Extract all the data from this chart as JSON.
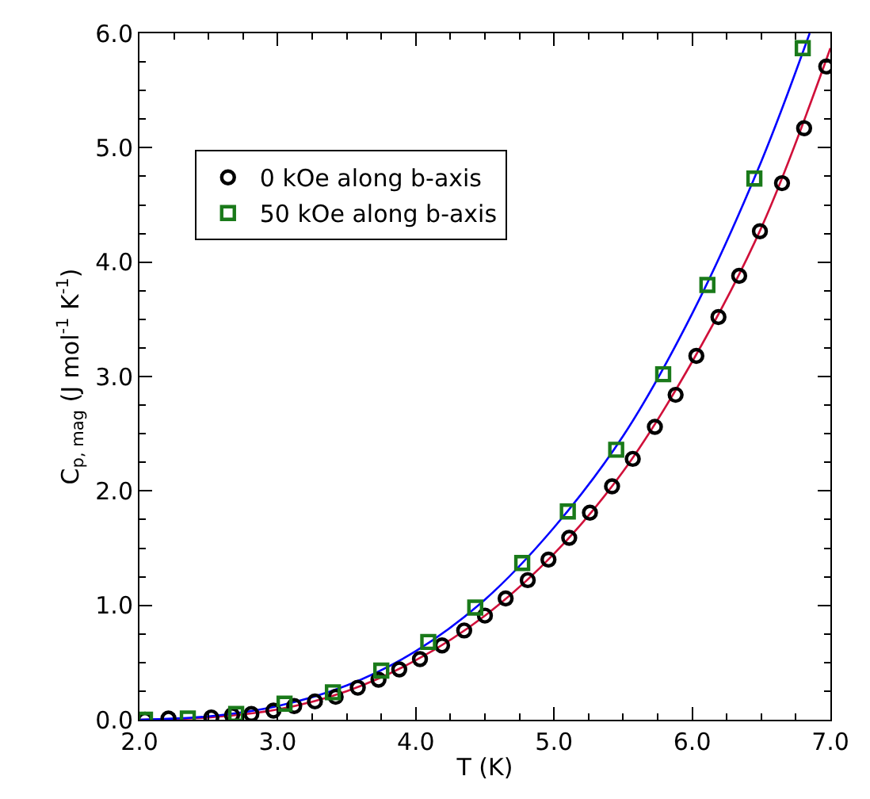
{
  "chart_data": {
    "type": "scatter",
    "xlabel": "T (K)",
    "ylabel": "C$_{p, mag}$ (J mol$^{-1}$ K$^{-1}$)",
    "xlim": [
      2.0,
      7.0
    ],
    "ylim": [
      0.0,
      6.0
    ],
    "xticks": [
      {
        "value": 2,
        "label": "2.0"
      },
      {
        "value": 3,
        "label": "3.0"
      },
      {
        "value": 4,
        "label": "4.0"
      },
      {
        "value": 5,
        "label": "5.0"
      },
      {
        "value": 6,
        "label": "6.0"
      },
      {
        "value": 7,
        "label": "7.0"
      }
    ],
    "yticks": [
      {
        "value": 0,
        "label": "0.0"
      },
      {
        "value": 1,
        "label": "1.0"
      },
      {
        "value": 2,
        "label": "2.0"
      },
      {
        "value": 3,
        "label": "3.0"
      },
      {
        "value": 4,
        "label": "4.0"
      },
      {
        "value": 5,
        "label": "5.0"
      },
      {
        "value": 6,
        "label": "6.0"
      }
    ],
    "grid": false,
    "legend": "top left",
    "series": [
      {
        "type": "line",
        "color": "#d0103a",
        "marker": "none",
        "x": [
          2.0,
          2.5,
          3.0,
          3.5,
          4.0,
          4.5,
          5.0,
          5.5,
          6.0,
          6.5,
          7.0
        ],
        "values": [
          0.0,
          0.02,
          0.09,
          0.25,
          0.52,
          0.91,
          1.45,
          2.17,
          3.13,
          4.3,
          5.87
        ]
      },
      {
        "type": "line",
        "color": "#0000ff",
        "marker": "none",
        "x": [
          2.0,
          2.5,
          3.0,
          3.5,
          4.0,
          4.5,
          5.0,
          5.5,
          6.0,
          6.5,
          6.85
        ],
        "values": [
          0.0,
          0.03,
          0.12,
          0.3,
          0.6,
          1.05,
          1.68,
          2.48,
          3.55,
          4.88,
          6.0
        ]
      },
      {
        "name": "0 kOe along b-axis",
        "color": "#000000",
        "marker": "circle",
        "x": [
          2.04,
          2.21,
          2.52,
          2.67,
          2.81,
          2.97,
          3.12,
          3.27,
          3.42,
          3.58,
          3.73,
          3.88,
          4.03,
          4.19,
          4.35,
          4.5,
          4.65,
          4.81,
          4.96,
          5.11,
          5.26,
          5.42,
          5.57,
          5.73,
          5.88,
          6.03,
          6.19,
          6.34,
          6.49,
          6.65,
          6.81,
          6.97
        ],
        "values": [
          0.0,
          0.01,
          0.02,
          0.04,
          0.05,
          0.08,
          0.12,
          0.16,
          0.2,
          0.28,
          0.35,
          0.44,
          0.53,
          0.65,
          0.78,
          0.91,
          1.06,
          1.22,
          1.4,
          1.59,
          1.81,
          2.04,
          2.28,
          2.56,
          2.84,
          3.18,
          3.52,
          3.88,
          4.27,
          4.69,
          5.17,
          5.71
        ]
      },
      {
        "name": "50 kOe along b-axis",
        "color": "#1a7a1a",
        "marker": "square",
        "x": [
          2.04,
          2.35,
          2.7,
          3.05,
          3.4,
          3.75,
          4.09,
          4.43,
          4.77,
          5.1,
          5.45,
          5.79,
          6.11,
          6.45,
          6.8
        ],
        "values": [
          0.0,
          0.01,
          0.05,
          0.14,
          0.24,
          0.43,
          0.68,
          0.98,
          1.37,
          1.82,
          2.36,
          3.02,
          3.8,
          4.73,
          5.87
        ]
      }
    ]
  }
}
